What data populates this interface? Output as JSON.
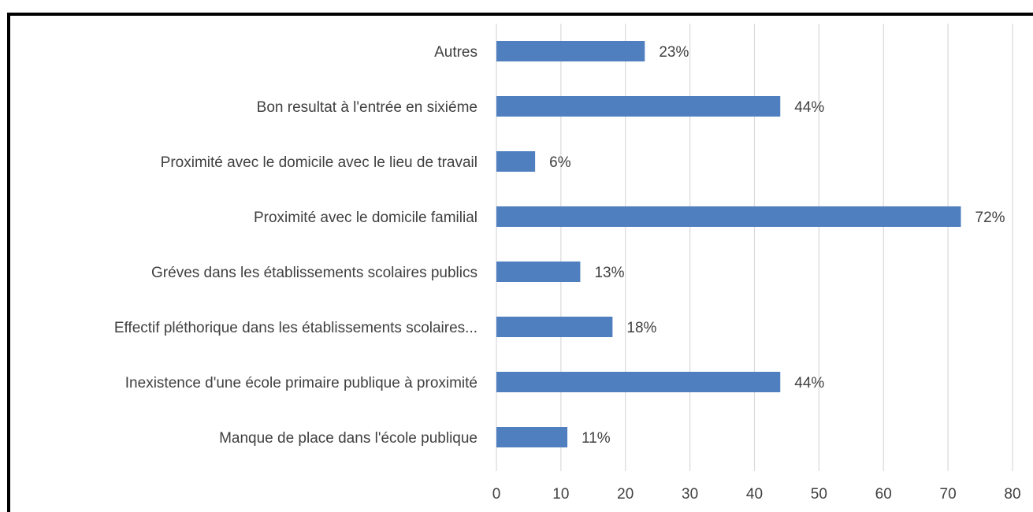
{
  "chart_data": {
    "type": "bar",
    "orientation": "horizontal",
    "categories": [
      "Autres",
      "Bon resultat à l'entrée en sixiéme",
      "Proximité avec le domicile avec le lieu de travail",
      "Proximité avec le domicile familial",
      "Gréves dans les établissements scolaires publics",
      "Effectif pléthorique dans les établissements scolaires...",
      "Inexistence d'une école primaire publique à proximité",
      "Manque de place dans l'école publique"
    ],
    "values": [
      23,
      44,
      6,
      72,
      13,
      18,
      44,
      11
    ],
    "value_labels": [
      "23%",
      "44%",
      "6%",
      "72%",
      "13%",
      "18%",
      "44%",
      "11%"
    ],
    "color": "#4f7fbf",
    "xlim": [
      0,
      80
    ],
    "xticks": [
      0,
      10,
      20,
      30,
      40,
      50,
      60,
      70,
      80
    ],
    "grid": true
  }
}
